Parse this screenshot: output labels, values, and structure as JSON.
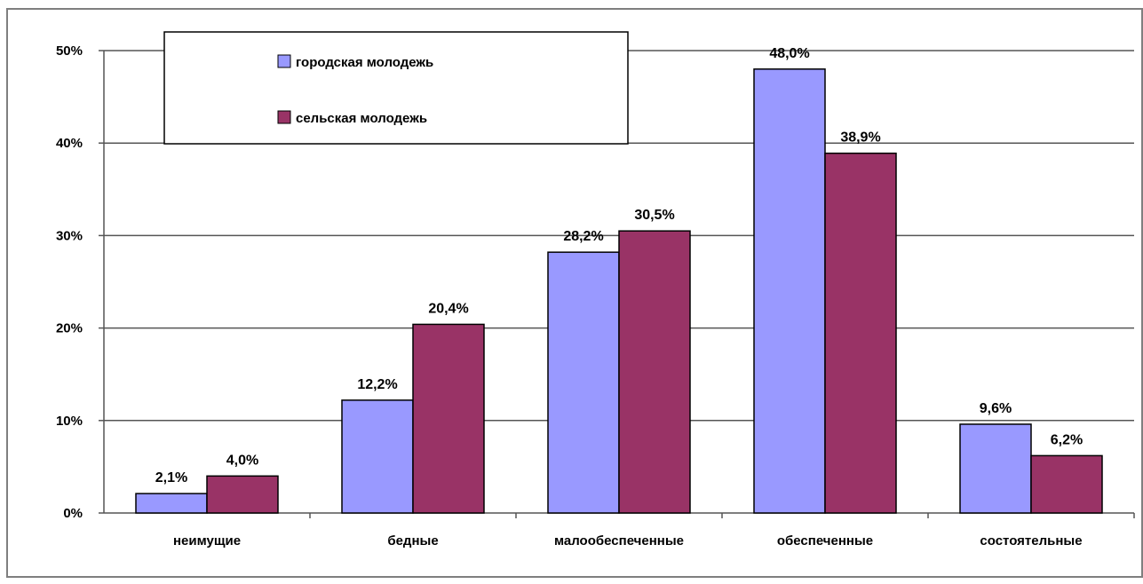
{
  "chart_data": {
    "type": "bar",
    "categories": [
      "неимущие",
      "бедные",
      "малообеспеченные",
      "обеспеченные",
      "состоятельные"
    ],
    "series": [
      {
        "name": "городская молодежь",
        "color": "#9999ff",
        "values": [
          2.1,
          12.2,
          28.2,
          48.0,
          9.6
        ],
        "labels": [
          "2,1%",
          "12,2%",
          "28,2%",
          "48,0%",
          "9,6%"
        ]
      },
      {
        "name": "сельская молодежь",
        "color": "#993366",
        "values": [
          4.0,
          20.4,
          30.5,
          38.9,
          6.2
        ],
        "labels": [
          "4,0%",
          "20,4%",
          "30,5%",
          "38,9%",
          "6,2%"
        ]
      }
    ],
    "y_ticks": [
      "0%",
      "10%",
      "20%",
      "30%",
      "40%",
      "50%"
    ],
    "ylim": [
      0,
      50
    ],
    "grid": true,
    "legend_position": "top-left"
  }
}
